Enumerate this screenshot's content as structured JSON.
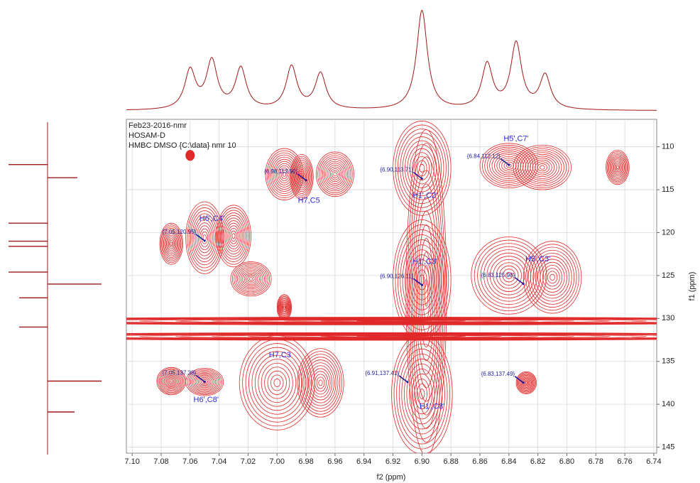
{
  "chart_data": {
    "type": "contour",
    "info_lines": [
      "Feb23-2016-nmr",
      "HOSAM-D",
      "HMBC DMSO {C:\\data} nmr 10"
    ],
    "xlabel": "f2 (ppm)",
    "ylabel": "f1 (ppm)",
    "xlim": [
      7.104,
      6.738
    ],
    "ylim": [
      106.8,
      145.7
    ],
    "xticks": [
      {
        "value": 7.1,
        "label": "7.10"
      },
      {
        "value": 7.08,
        "label": "7.08"
      },
      {
        "value": 7.06,
        "label": "7.06"
      },
      {
        "value": 7.04,
        "label": "7.04"
      },
      {
        "value": 7.02,
        "label": "7.02"
      },
      {
        "value": 7.0,
        "label": "7.00"
      },
      {
        "value": 6.98,
        "label": "6.98"
      },
      {
        "value": 6.96,
        "label": "6.96"
      },
      {
        "value": 6.94,
        "label": "6.94"
      },
      {
        "value": 6.92,
        "label": "6.92"
      },
      {
        "value": 6.9,
        "label": "6.90"
      },
      {
        "value": 6.88,
        "label": "6.88"
      },
      {
        "value": 6.86,
        "label": "6.86"
      },
      {
        "value": 6.84,
        "label": "6.84"
      },
      {
        "value": 6.82,
        "label": "6.82"
      },
      {
        "value": 6.8,
        "label": "6.80"
      },
      {
        "value": 6.78,
        "label": "6.78"
      },
      {
        "value": 6.76,
        "label": "6.76"
      },
      {
        "value": 6.74,
        "label": "6.74"
      }
    ],
    "yticks": [
      110,
      115,
      120,
      125,
      130,
      135,
      140,
      145
    ],
    "grid": true,
    "contour_color": "#e02828",
    "trace_color": "#a01818",
    "label_color": "#1c1c9c",
    "assignment_color": "#2a2ae6",
    "signals": [
      {
        "x": 7.073,
        "y": 121.3,
        "dx": 0.008,
        "dy": 2.4
      },
      {
        "x": 7.05,
        "y": 120.6,
        "dx": 0.013,
        "dy": 4.2
      },
      {
        "x": 7.03,
        "y": 120.4,
        "dx": 0.012,
        "dy": 3.6
      },
      {
        "x": 7.018,
        "y": 125.4,
        "dx": 0.014,
        "dy": 2.0
      },
      {
        "x": 7.06,
        "y": 111.0,
        "dx": 0.003,
        "dy": 0.6
      },
      {
        "x": 6.995,
        "y": 113.2,
        "dx": 0.013,
        "dy": 3.0
      },
      {
        "x": 6.983,
        "y": 113.5,
        "dx": 0.008,
        "dy": 2.6
      },
      {
        "x": 6.96,
        "y": 113.2,
        "dx": 0.013,
        "dy": 2.6
      },
      {
        "x": 6.995,
        "y": 128.7,
        "dx": 0.005,
        "dy": 1.5
      },
      {
        "x": 6.9,
        "y": 112.5,
        "dx": 0.02,
        "dy": 5.5
      },
      {
        "x": 6.9,
        "y": 125.5,
        "dx": 0.02,
        "dy": 7.0
      },
      {
        "x": 6.897,
        "y": 127.0,
        "dx": 0.014,
        "dy": 19.0
      },
      {
        "x": 6.84,
        "y": 112.2,
        "dx": 0.02,
        "dy": 2.6
      },
      {
        "x": 6.817,
        "y": 112.4,
        "dx": 0.02,
        "dy": 2.6
      },
      {
        "x": 6.765,
        "y": 112.4,
        "dx": 0.008,
        "dy": 2.0
      },
      {
        "x": 6.84,
        "y": 125.0,
        "dx": 0.026,
        "dy": 4.5
      },
      {
        "x": 6.81,
        "y": 125.2,
        "dx": 0.02,
        "dy": 4.2
      },
      {
        "x": 7.073,
        "y": 137.3,
        "dx": 0.01,
        "dy": 1.6
      },
      {
        "x": 7.05,
        "y": 137.4,
        "dx": 0.013,
        "dy": 1.6
      },
      {
        "x": 7.0,
        "y": 137.5,
        "dx": 0.026,
        "dy": 5.5
      },
      {
        "x": 6.97,
        "y": 137.5,
        "dx": 0.016,
        "dy": 4.0
      },
      {
        "x": 6.9,
        "y": 138.8,
        "dx": 0.021,
        "dy": 7.0
      },
      {
        "x": 6.828,
        "y": 137.5,
        "dx": 0.007,
        "dy": 1.3
      },
      {
        "x": 6.92,
        "y": 130.3,
        "dx": 0.3,
        "dy": 0.45
      },
      {
        "x": 6.92,
        "y": 132.1,
        "dx": 0.3,
        "dy": 0.45
      }
    ],
    "peaks": [
      {
        "x": 7.05,
        "y": 120.95,
        "label": "{7.05,120.95}"
      },
      {
        "x": 6.98,
        "y": 113.9,
        "label": "{6.98,113.90}"
      },
      {
        "x": 6.9,
        "y": 113.71,
        "label": "{6.90,113.71}"
      },
      {
        "x": 6.84,
        "y": 112.12,
        "label": "{6.84,112.12}"
      },
      {
        "x": 6.9,
        "y": 126.11,
        "label": "{6.90,126.11}"
      },
      {
        "x": 6.83,
        "y": 125.98,
        "label": "{6.83,125.98}"
      },
      {
        "x": 7.05,
        "y": 137.38,
        "label": "{7.05,137.38}"
      },
      {
        "x": 6.91,
        "y": 137.41,
        "label": "{6.91,137.41}"
      },
      {
        "x": 6.83,
        "y": 137.49,
        "label": "{6.83,137.49}"
      }
    ],
    "assignments": [
      {
        "text": "H6',C4'",
        "x": 7.045,
        "y": 118.4
      },
      {
        "text": "H7,C5",
        "x": 6.978,
        "y": 116.3
      },
      {
        "text": "H1',C2'",
        "x": 6.898,
        "y": 115.7
      },
      {
        "text": "H5',C7'",
        "x": 6.835,
        "y": 109.1
      },
      {
        "text": "H1',C3'",
        "x": 6.898,
        "y": 123.4
      },
      {
        "text": "H5',C3'",
        "x": 6.82,
        "y": 123.1
      },
      {
        "text": "H7,C3",
        "x": 6.998,
        "y": 134.3
      },
      {
        "text": "H6',C8'",
        "x": 7.049,
        "y": 139.5
      },
      {
        "text": "H1',C8'",
        "x": 6.893,
        "y": 140.3
      }
    ],
    "f2_trace": {
      "x": [
        7.06,
        7.045,
        7.025,
        6.99,
        6.97,
        6.9,
        6.855,
        6.835,
        6.815
      ],
      "values": [
        0.39,
        0.48,
        0.41,
        0.43,
        0.36,
        1.0,
        0.45,
        0.66,
        0.34
      ]
    },
    "f1_trace": {
      "y": [
        112.07,
        113.6,
        118.9,
        121.0,
        121.6,
        124.6,
        126.0,
        127.6,
        131.0,
        137.3,
        140.9
      ],
      "values": [
        -55,
        42,
        -55,
        -55,
        -55,
        -55,
        76,
        -40,
        -40,
        76,
        38
      ]
    }
  }
}
